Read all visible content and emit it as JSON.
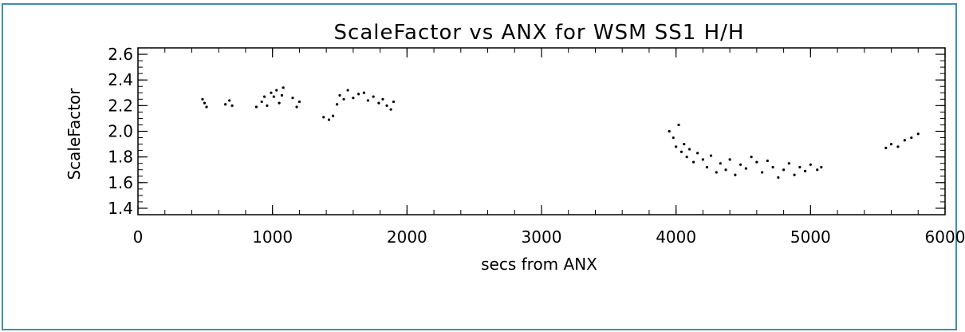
{
  "chart_data": {
    "type": "scatter",
    "title": "ScaleFactor vs ANX for WSM SS1 H/H",
    "xlabel": "secs from ANX",
    "ylabel": "ScaleFactor",
    "xlim": [
      0,
      6000
    ],
    "ylim": [
      1.35,
      2.65
    ],
    "x_ticks": [
      0,
      1000,
      2000,
      3000,
      4000,
      5000,
      6000
    ],
    "x_tick_labels": [
      "0",
      "1000",
      "2000",
      "3000",
      "4000",
      "5000",
      "6000"
    ],
    "y_ticks": [
      1.4,
      1.6,
      1.8,
      2.0,
      2.2,
      2.4,
      2.6
    ],
    "y_tick_labels": [
      "1.4",
      "1.6",
      "1.8",
      "2.0",
      "2.2",
      "2.4",
      "2.6"
    ],
    "grid": false,
    "legend": "none",
    "series": [
      {
        "points": [
          [
            480,
            2.25
          ],
          [
            495,
            2.22
          ],
          [
            510,
            2.19
          ],
          [
            650,
            2.21
          ],
          [
            680,
            2.24
          ],
          [
            700,
            2.2
          ],
          [
            880,
            2.19
          ],
          [
            920,
            2.23
          ],
          [
            940,
            2.27
          ],
          [
            960,
            2.2
          ],
          [
            990,
            2.3
          ],
          [
            1010,
            2.27
          ],
          [
            1030,
            2.32
          ],
          [
            1050,
            2.22
          ],
          [
            1070,
            2.28
          ],
          [
            1080,
            2.34
          ],
          [
            1150,
            2.26
          ],
          [
            1180,
            2.19
          ],
          [
            1200,
            2.23
          ],
          [
            1380,
            2.11
          ],
          [
            1420,
            2.09
          ],
          [
            1450,
            2.12
          ],
          [
            1480,
            2.21
          ],
          [
            1500,
            2.28
          ],
          [
            1530,
            2.25
          ],
          [
            1560,
            2.32
          ],
          [
            1600,
            2.26
          ],
          [
            1640,
            2.29
          ],
          [
            1680,
            2.3
          ],
          [
            1710,
            2.24
          ],
          [
            1750,
            2.27
          ],
          [
            1790,
            2.22
          ],
          [
            1820,
            2.25
          ],
          [
            1850,
            2.2
          ],
          [
            1880,
            2.17
          ],
          [
            1900,
            2.23
          ],
          [
            3950,
            2.0
          ],
          [
            3980,
            1.95
          ],
          [
            4000,
            1.88
          ],
          [
            4020,
            2.05
          ],
          [
            4040,
            1.84
          ],
          [
            4060,
            1.9
          ],
          [
            4080,
            1.8
          ],
          [
            4100,
            1.86
          ],
          [
            4130,
            1.76
          ],
          [
            4160,
            1.83
          ],
          [
            4200,
            1.78
          ],
          [
            4230,
            1.72
          ],
          [
            4260,
            1.81
          ],
          [
            4300,
            1.68
          ],
          [
            4330,
            1.75
          ],
          [
            4370,
            1.7
          ],
          [
            4400,
            1.78
          ],
          [
            4440,
            1.66
          ],
          [
            4480,
            1.74
          ],
          [
            4520,
            1.71
          ],
          [
            4560,
            1.8
          ],
          [
            4600,
            1.76
          ],
          [
            4640,
            1.68
          ],
          [
            4680,
            1.77
          ],
          [
            4720,
            1.72
          ],
          [
            4760,
            1.64
          ],
          [
            4800,
            1.7
          ],
          [
            4840,
            1.75
          ],
          [
            4880,
            1.66
          ],
          [
            4920,
            1.72
          ],
          [
            4960,
            1.69
          ],
          [
            5000,
            1.74
          ],
          [
            5050,
            1.7
          ],
          [
            5080,
            1.72
          ],
          [
            5560,
            1.87
          ],
          [
            5600,
            1.9
          ],
          [
            5650,
            1.88
          ],
          [
            5700,
            1.93
          ],
          [
            5750,
            1.95
          ],
          [
            5800,
            1.98
          ]
        ]
      }
    ]
  }
}
